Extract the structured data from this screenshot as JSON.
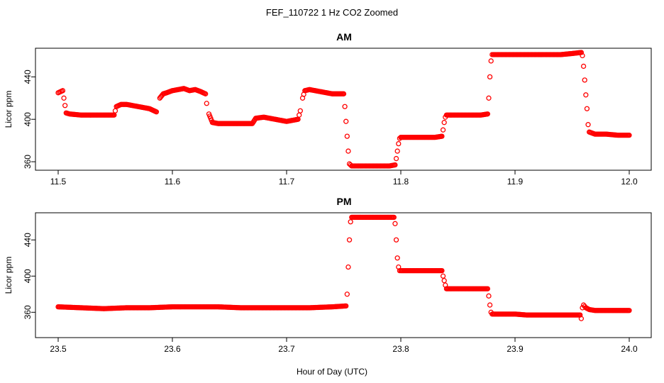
{
  "figure": {
    "title": "FEF_110722  1 Hz CO2 Zoomed",
    "xlabel": "Hour of Day (UTC)",
    "point_color": "#ff0000"
  },
  "chart_data": [
    {
      "type": "scatter",
      "title": "AM",
      "xlabel": "",
      "ylabel": "Licor ppm",
      "xlim": [
        11.5,
        12.0
      ],
      "ylim": [
        352,
        467
      ],
      "xticks": [
        {
          "value": 11.5,
          "label": "11.5"
        },
        {
          "value": 11.6,
          "label": "11.6"
        },
        {
          "value": 11.7,
          "label": "11.7"
        },
        {
          "value": 11.8,
          "label": "11.8"
        },
        {
          "value": 11.9,
          "label": "11.9"
        },
        {
          "value": 12.0,
          "label": "12.0"
        }
      ],
      "yticks": [
        {
          "value": 360,
          "label": "360"
        },
        {
          "value": 400,
          "label": "400"
        },
        {
          "value": 440,
          "label": "440"
        }
      ],
      "grid": false,
      "series": [
        {
          "color": "#ff0000",
          "x": [
            11.5,
            11.502,
            11.504,
            11.505,
            11.506,
            11.507,
            11.51,
            11.52,
            11.53,
            11.54,
            11.549,
            11.551,
            11.555,
            11.56,
            11.57,
            11.58,
            11.586,
            11.589,
            11.592,
            11.595,
            11.6,
            11.61,
            11.615,
            11.62,
            11.625,
            11.629,
            11.63,
            11.632,
            11.635,
            11.64,
            11.65,
            11.66,
            11.67,
            11.673,
            11.68,
            11.69,
            11.7,
            11.71,
            11.712,
            11.714,
            11.716,
            11.72,
            11.73,
            11.74,
            11.75,
            11.751,
            11.752,
            11.753,
            11.754,
            11.755,
            11.757,
            11.76,
            11.77,
            11.78,
            11.79,
            11.795,
            11.796,
            11.797,
            11.798,
            11.799,
            11.8,
            11.81,
            11.82,
            11.83,
            11.836,
            11.837,
            11.838,
            11.839,
            11.84,
            11.85,
            11.86,
            11.87,
            11.876,
            11.877,
            11.878,
            11.879,
            11.88,
            11.881,
            11.89,
            11.9,
            11.91,
            11.92,
            11.93,
            11.94,
            11.95,
            11.958,
            11.959,
            11.96,
            11.961,
            11.962,
            11.963,
            11.964,
            11.965,
            11.97,
            11.98,
            11.99,
            12.0
          ],
          "y": [
            425,
            426,
            427,
            420,
            413,
            406,
            405,
            404,
            404,
            404,
            404,
            412,
            414,
            414,
            412,
            410,
            407,
            420,
            424,
            425,
            427,
            429,
            427,
            428,
            426,
            424,
            415,
            405,
            397,
            396,
            396,
            396,
            396,
            401,
            402,
            400,
            398,
            400,
            408,
            420,
            427,
            428,
            426,
            424,
            424,
            412,
            398,
            384,
            370,
            358,
            356,
            356,
            356,
            356,
            356,
            357,
            363,
            370,
            377,
            382,
            383,
            383,
            383,
            383,
            384,
            390,
            397,
            402,
            404,
            404,
            404,
            404,
            405,
            420,
            440,
            455,
            461,
            461,
            461,
            461,
            461,
            461,
            461,
            461,
            462,
            463,
            460,
            450,
            437,
            423,
            410,
            395,
            388,
            386,
            386,
            385,
            385
          ]
        }
      ]
    },
    {
      "type": "scatter",
      "title": "PM",
      "xlabel": "",
      "ylabel": "Licor ppm",
      "xlim": [
        23.5,
        24.0
      ],
      "ylim": [
        332,
        470
      ],
      "xticks": [
        {
          "value": 23.5,
          "label": "23.5"
        },
        {
          "value": 23.6,
          "label": "23.6"
        },
        {
          "value": 23.7,
          "label": "23.7"
        },
        {
          "value": 23.8,
          "label": "23.8"
        },
        {
          "value": 23.9,
          "label": "23.9"
        },
        {
          "value": 24.0,
          "label": "24.0"
        }
      ],
      "yticks": [
        {
          "value": 360,
          "label": "360"
        },
        {
          "value": 400,
          "label": "400"
        },
        {
          "value": 440,
          "label": "440"
        }
      ],
      "grid": false,
      "series": [
        {
          "color": "#ff0000",
          "x": [
            23.5,
            23.52,
            23.54,
            23.56,
            23.58,
            23.6,
            23.62,
            23.64,
            23.66,
            23.68,
            23.7,
            23.72,
            23.74,
            23.752,
            23.753,
            23.754,
            23.755,
            23.756,
            23.757,
            23.76,
            23.77,
            23.78,
            23.79,
            23.794,
            23.795,
            23.796,
            23.797,
            23.798,
            23.799,
            23.8,
            23.81,
            23.82,
            23.83,
            23.836,
            23.837,
            23.838,
            23.839,
            23.84,
            23.85,
            23.86,
            23.87,
            23.876,
            23.877,
            23.878,
            23.879,
            23.88,
            23.89,
            23.9,
            23.91,
            23.92,
            23.93,
            23.94,
            23.95,
            23.957,
            23.958,
            23.959,
            23.96,
            23.962,
            23.965,
            23.97,
            23.98,
            23.99,
            24.0
          ],
          "y": [
            366,
            365,
            364,
            365,
            365,
            366,
            366,
            366,
            365,
            365,
            365,
            365,
            366,
            367,
            380,
            410,
            440,
            460,
            465,
            465,
            465,
            465,
            465,
            465,
            458,
            440,
            420,
            410,
            406,
            406,
            406,
            406,
            406,
            406,
            400,
            395,
            390,
            386,
            386,
            386,
            386,
            386,
            378,
            368,
            360,
            358,
            358,
            358,
            357,
            357,
            357,
            357,
            357,
            357,
            353,
            365,
            368,
            365,
            363,
            362,
            362,
            362,
            362
          ]
        }
      ]
    }
  ]
}
